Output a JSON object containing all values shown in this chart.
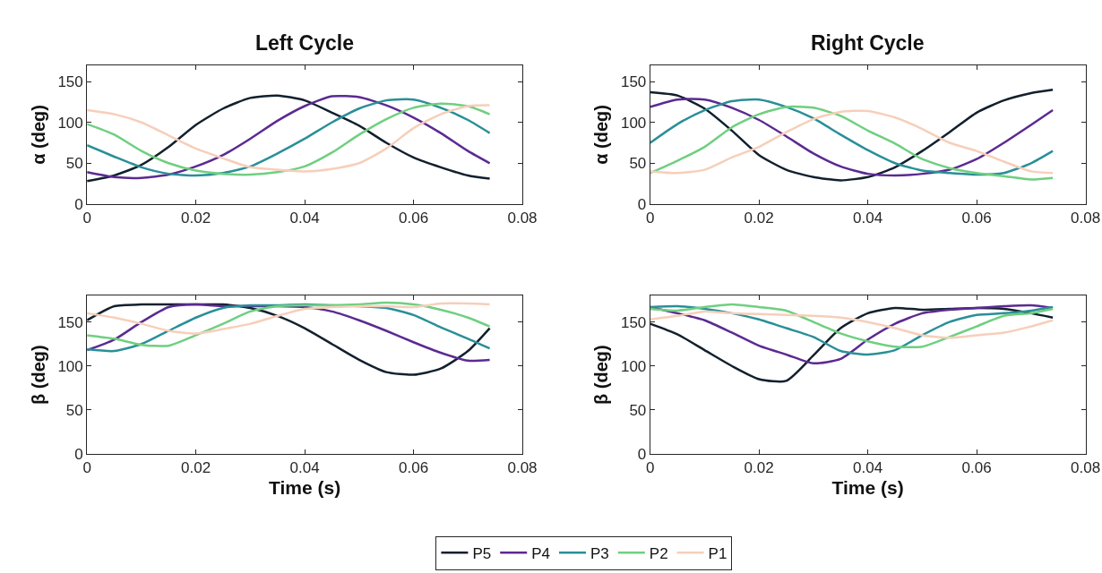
{
  "chart_data": [
    {
      "type": "line",
      "title": "Left Cycle",
      "ylabel": "α (deg)",
      "x": [
        0,
        0.005,
        0.01,
        0.015,
        0.02,
        0.025,
        0.03,
        0.035,
        0.04,
        0.045,
        0.05,
        0.055,
        0.06,
        0.065,
        0.07,
        0.074
      ],
      "xlim": [
        0,
        0.08
      ],
      "xticks": [
        0,
        0.02,
        0.04,
        0.06,
        0.08
      ],
      "ylim": [
        0,
        170
      ],
      "yticks": [
        0,
        50,
        100,
        150
      ],
      "grid": false,
      "legend": "bottom",
      "line_style": "solid",
      "marker": "none",
      "series": [
        {
          "name": "P5",
          "color": "#12202e",
          "values": [
            28,
            35,
            48,
            70,
            97,
            117,
            130,
            133,
            127,
            112,
            96,
            75,
            57,
            45,
            35,
            31
          ]
        },
        {
          "name": "P4",
          "color": "#5b2a92",
          "values": [
            39,
            33,
            32,
            36,
            46,
            60,
            80,
            102,
            120,
            132,
            131,
            121,
            106,
            87,
            65,
            50
          ]
        },
        {
          "name": "P3",
          "color": "#2a8f98",
          "values": [
            72,
            58,
            45,
            37,
            35,
            38,
            46,
            62,
            80,
            100,
            117,
            127,
            128,
            118,
            103,
            87
          ]
        },
        {
          "name": "P2",
          "color": "#6fcf80",
          "values": [
            98,
            85,
            65,
            50,
            41,
            37,
            36,
            39,
            46,
            63,
            85,
            104,
            118,
            123,
            120,
            110
          ]
        },
        {
          "name": "P1",
          "color": "#f6cfba",
          "values": [
            115,
            110,
            100,
            84,
            68,
            56,
            45,
            42,
            40,
            43,
            50,
            68,
            93,
            110,
            120,
            121
          ]
        }
      ]
    },
    {
      "type": "line",
      "title": "Right Cycle",
      "ylabel": "α (deg)",
      "x": [
        0,
        0.005,
        0.01,
        0.015,
        0.02,
        0.025,
        0.03,
        0.035,
        0.04,
        0.045,
        0.05,
        0.055,
        0.06,
        0.065,
        0.07,
        0.074
      ],
      "xlim": [
        0,
        0.08
      ],
      "xticks": [
        0,
        0.02,
        0.04,
        0.06,
        0.08
      ],
      "ylim": [
        0,
        170
      ],
      "yticks": [
        0,
        50,
        100,
        150
      ],
      "grid": false,
      "legend": "bottom",
      "line_style": "solid",
      "marker": "none",
      "series": [
        {
          "name": "P5",
          "color": "#12202e",
          "values": [
            137,
            133,
            117,
            90,
            60,
            42,
            33,
            29,
            33,
            45,
            65,
            88,
            112,
            127,
            136,
            140
          ]
        },
        {
          "name": "P4",
          "color": "#5b2a92",
          "values": [
            119,
            128,
            128,
            118,
            103,
            83,
            62,
            46,
            37,
            35,
            37,
            42,
            55,
            75,
            97,
            115
          ]
        },
        {
          "name": "P3",
          "color": "#2a8f98",
          "values": [
            75,
            98,
            115,
            126,
            128,
            119,
            105,
            85,
            66,
            50,
            41,
            38,
            36,
            38,
            50,
            65
          ]
        },
        {
          "name": "P2",
          "color": "#6fcf80",
          "values": [
            38,
            53,
            70,
            94,
            110,
            119,
            118,
            108,
            90,
            74,
            55,
            44,
            38,
            34,
            30,
            32
          ]
        },
        {
          "name": "P1",
          "color": "#f6cfba",
          "values": [
            40,
            38,
            42,
            57,
            70,
            88,
            104,
            113,
            114,
            106,
            92,
            75,
            65,
            52,
            40,
            38
          ]
        }
      ]
    },
    {
      "type": "line",
      "xlabel": "Time (s)",
      "ylabel": "β (deg)",
      "x": [
        0,
        0.005,
        0.01,
        0.015,
        0.02,
        0.025,
        0.03,
        0.035,
        0.04,
        0.045,
        0.05,
        0.055,
        0.06,
        0.065,
        0.07,
        0.074
      ],
      "xlim": [
        0,
        0.08
      ],
      "xticks": [
        0,
        0.02,
        0.04,
        0.06,
        0.08
      ],
      "ylim": [
        0,
        180
      ],
      "yticks": [
        0,
        50,
        100,
        150
      ],
      "grid": false,
      "legend": "bottom",
      "line_style": "solid",
      "marker": "none",
      "series": [
        {
          "name": "P5",
          "color": "#12202e",
          "values": [
            152,
            168,
            170,
            170,
            170,
            170,
            166,
            157,
            143,
            125,
            107,
            93,
            90,
            97,
            117,
            143
          ]
        },
        {
          "name": "P4",
          "color": "#5b2a92",
          "values": [
            118,
            130,
            150,
            167,
            170,
            168,
            168,
            168,
            167,
            162,
            152,
            140,
            127,
            115,
            106,
            107
          ]
        },
        {
          "name": "P3",
          "color": "#2a8f98",
          "values": [
            119,
            117,
            125,
            140,
            155,
            166,
            169,
            169,
            170,
            169,
            168,
            166,
            158,
            144,
            131,
            120
          ]
        },
        {
          "name": "P2",
          "color": "#6fcf80",
          "values": [
            135,
            131,
            124,
            123,
            135,
            148,
            162,
            168,
            169,
            169,
            170,
            172,
            170,
            164,
            155,
            145
          ]
        },
        {
          "name": "P1",
          "color": "#f6cfba",
          "values": [
            160,
            155,
            148,
            140,
            137,
            142,
            148,
            157,
            165,
            167,
            168,
            168,
            167,
            171,
            171,
            170
          ]
        }
      ]
    },
    {
      "type": "line",
      "xlabel": "Time (s)",
      "ylabel": "β (deg)",
      "x": [
        0,
        0.005,
        0.01,
        0.015,
        0.02,
        0.025,
        0.03,
        0.035,
        0.04,
        0.045,
        0.05,
        0.055,
        0.06,
        0.065,
        0.07,
        0.074
      ],
      "xlim": [
        0,
        0.08
      ],
      "xticks": [
        0,
        0.02,
        0.04,
        0.06,
        0.08
      ],
      "ylim": [
        0,
        180
      ],
      "yticks": [
        0,
        50,
        100,
        150
      ],
      "grid": false,
      "legend": "bottom",
      "line_style": "solid",
      "marker": "none",
      "series": [
        {
          "name": "P5",
          "color": "#12202e",
          "values": [
            148,
            136,
            118,
            100,
            85,
            83,
            112,
            143,
            160,
            166,
            164,
            165,
            166,
            165,
            160,
            155
          ]
        },
        {
          "name": "P4",
          "color": "#5b2a92",
          "values": [
            167,
            160,
            152,
            138,
            123,
            113,
            103,
            108,
            130,
            148,
            160,
            164,
            166,
            168,
            169,
            166
          ]
        },
        {
          "name": "P3",
          "color": "#2a8f98",
          "values": [
            167,
            168,
            165,
            160,
            153,
            143,
            133,
            117,
            113,
            118,
            135,
            150,
            158,
            160,
            163,
            167
          ]
        },
        {
          "name": "P2",
          "color": "#6fcf80",
          "values": [
            165,
            163,
            167,
            170,
            167,
            163,
            150,
            137,
            128,
            122,
            122,
            133,
            145,
            157,
            160,
            165
          ]
        },
        {
          "name": "P1",
          "color": "#f6cfba",
          "values": [
            153,
            157,
            162,
            160,
            159,
            158,
            157,
            155,
            150,
            143,
            135,
            132,
            135,
            138,
            145,
            152
          ]
        }
      ]
    }
  ]
}
